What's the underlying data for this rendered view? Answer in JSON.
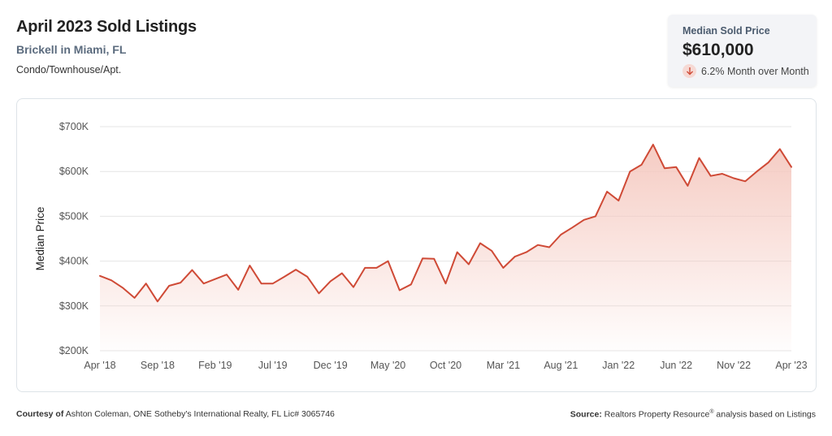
{
  "header": {
    "title": "April 2023 Sold Listings",
    "subtitle": "Brickell in Miami, FL",
    "category": "Condo/Townhouse/Apt."
  },
  "stat_card": {
    "label": "Median Sold Price",
    "value": "$610,000",
    "change": "6.2% Month over Month",
    "change_direction": "down",
    "icon": "arrow-down-icon"
  },
  "footer": {
    "courtesy_label": "Courtesy of",
    "courtesy_text": "Ashton Coleman, ONE Sotheby's International Realty, FL Lic# 3065746",
    "source_label": "Source:",
    "source_text_1": "Realtors Property Resource",
    "source_reg": "®",
    "source_text_2": " analysis based on Listings"
  },
  "colors": {
    "line": "#cf4a36",
    "fill_top": "#f5c9c0",
    "grid": "#e4e4e4",
    "accent_bg": "#f6d9d4"
  },
  "chart_data": {
    "type": "area",
    "title": "",
    "xlabel": "",
    "ylabel": "Median Price",
    "ylim": [
      200000,
      700000
    ],
    "yticks": [
      200000,
      300000,
      400000,
      500000,
      600000,
      700000
    ],
    "ytick_labels": [
      "$200K",
      "$300K",
      "$400K",
      "$500K",
      "$600K",
      "$700K"
    ],
    "xtick_labels": [
      "Apr '18",
      "Sep '18",
      "Feb '19",
      "Jul '19",
      "Dec '19",
      "May '20",
      "Oct '20",
      "Mar '21",
      "Aug '21",
      "Jan '22",
      "Jun '22",
      "Nov '22",
      "Apr '23"
    ],
    "grid": true,
    "series": [
      {
        "values": [
          367000,
          357000,
          340000,
          318000,
          350000,
          310000,
          345000,
          352000,
          380000,
          350000,
          360000,
          370000,
          336000,
          390000,
          350000,
          350000,
          365000,
          381000,
          365000,
          328000,
          355000,
          373000,
          342000,
          385000,
          385000,
          400000,
          335000,
          348000,
          406000,
          405000,
          350000,
          420000,
          393000,
          440000,
          423000,
          385000,
          410000,
          420000,
          436000,
          431000,
          459000,
          475000,
          492000,
          500000,
          555000,
          535000,
          600000,
          615000,
          660000,
          607000,
          610000,
          568000,
          630000,
          590000,
          595000,
          585000,
          578000,
          600000,
          620000,
          650000,
          610000
        ]
      }
    ]
  }
}
